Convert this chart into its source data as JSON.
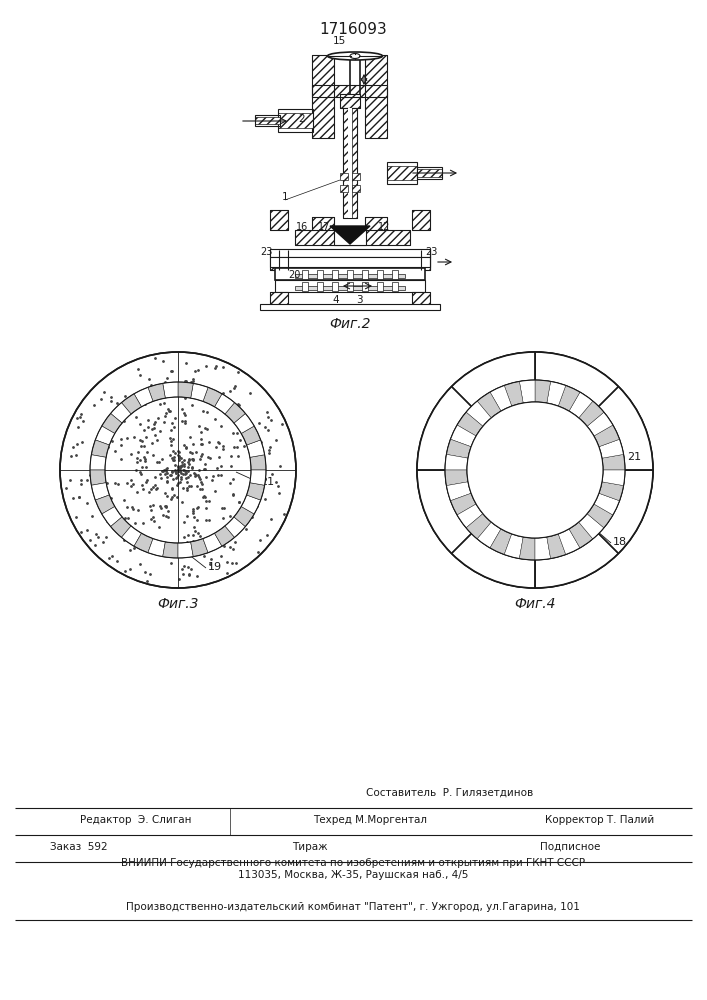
{
  "title": "1716093",
  "fig2_label": "Фиг.2",
  "fig3_label": "Фиг.3",
  "fig4_label": "Фиг.4",
  "line_color": "#1a1a1a",
  "footer_line1": "Составитель  Р. Гилязетдинов",
  "footer_line2_left": "Редактор  Э. Слиган",
  "footer_line2_mid": "Техред М.Моргентал",
  "footer_line2_right": "Корректор Т. Палий",
  "footer_line3_left": "Заказ  592",
  "footer_line3_mid": "Тираж",
  "footer_line3_right": "Подписное",
  "footer_line4": "ВНИИПИ Государственного комитета по изобретениям и открытиям при ГКНТ СССР",
  "footer_line5": "113035, Москва, Ж-35, Раушская наб., 4/5",
  "footer_line6": "Производственно-издательский комбинат \"Патент\", г. Ужгород, ул.Гагарина, 101"
}
